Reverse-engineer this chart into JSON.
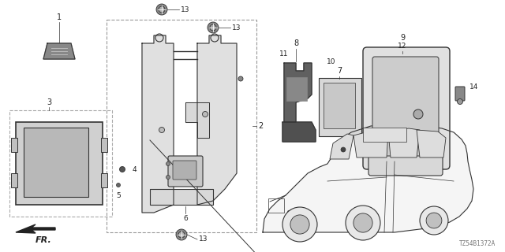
{
  "bg_color": "#ffffff",
  "line_color": "#333333",
  "diagram_id": "TZ54B1372A",
  "figsize": [
    6.4,
    3.2
  ],
  "dpi": 100
}
